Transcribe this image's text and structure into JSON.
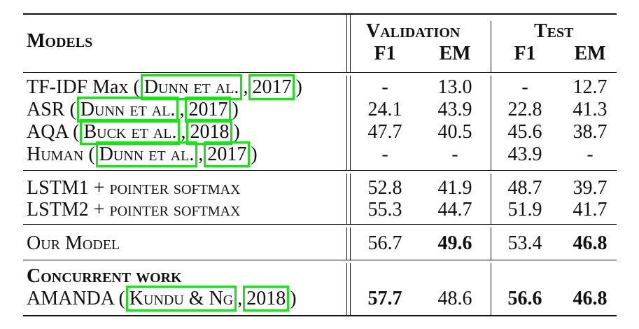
{
  "table": {
    "header": {
      "models": "Models",
      "validation": "Validation",
      "test": "Test",
      "f1": "F1",
      "em": "EM"
    },
    "rows": [
      {
        "model": "TF-IDF Max",
        "cite_authors": "Dunn et al.",
        "cite_year": "2017",
        "val_f1": "-",
        "val_em": "13.0",
        "test_f1": "-",
        "test_em": "12.7"
      },
      {
        "model": "ASR",
        "cite_authors": "Dunn et al.",
        "cite_year": "2017",
        "val_f1": "24.1",
        "val_em": "43.9",
        "test_f1": "22.8",
        "test_em": "41.3"
      },
      {
        "model": "AQA",
        "cite_authors": "Buck et al.",
        "cite_year": "2018",
        "val_f1": "47.7",
        "val_em": "40.5",
        "test_f1": "45.6",
        "test_em": "38.7"
      },
      {
        "model": "Human",
        "cite_authors": "Dunn et al.",
        "cite_year": "2017",
        "val_f1": "-",
        "val_em": "-",
        "test_f1": "43.9",
        "test_em": "-"
      },
      {
        "model": "LSTM1 + pointer softmax",
        "val_f1": "52.8",
        "val_em": "41.9",
        "test_f1": "48.7",
        "test_em": "39.7"
      },
      {
        "model": "LSTM2 + pointer softmax",
        "val_f1": "55.3",
        "val_em": "44.7",
        "test_f1": "51.9",
        "test_em": "41.7"
      },
      {
        "model": "Our Model",
        "val_f1": "56.7",
        "val_em": "49.6",
        "test_f1": "53.4",
        "test_em": "46.8"
      },
      {
        "section": "Concurrent work"
      },
      {
        "model": "AMANDA",
        "cite_authors": "Kundu & Ng",
        "cite_year": "2018",
        "val_f1": "57.7",
        "val_em": "48.6",
        "test_f1": "56.6",
        "test_em": "46.8"
      }
    ]
  },
  "colors": {
    "citation_box": "#1be11b",
    "text": "#111111"
  }
}
